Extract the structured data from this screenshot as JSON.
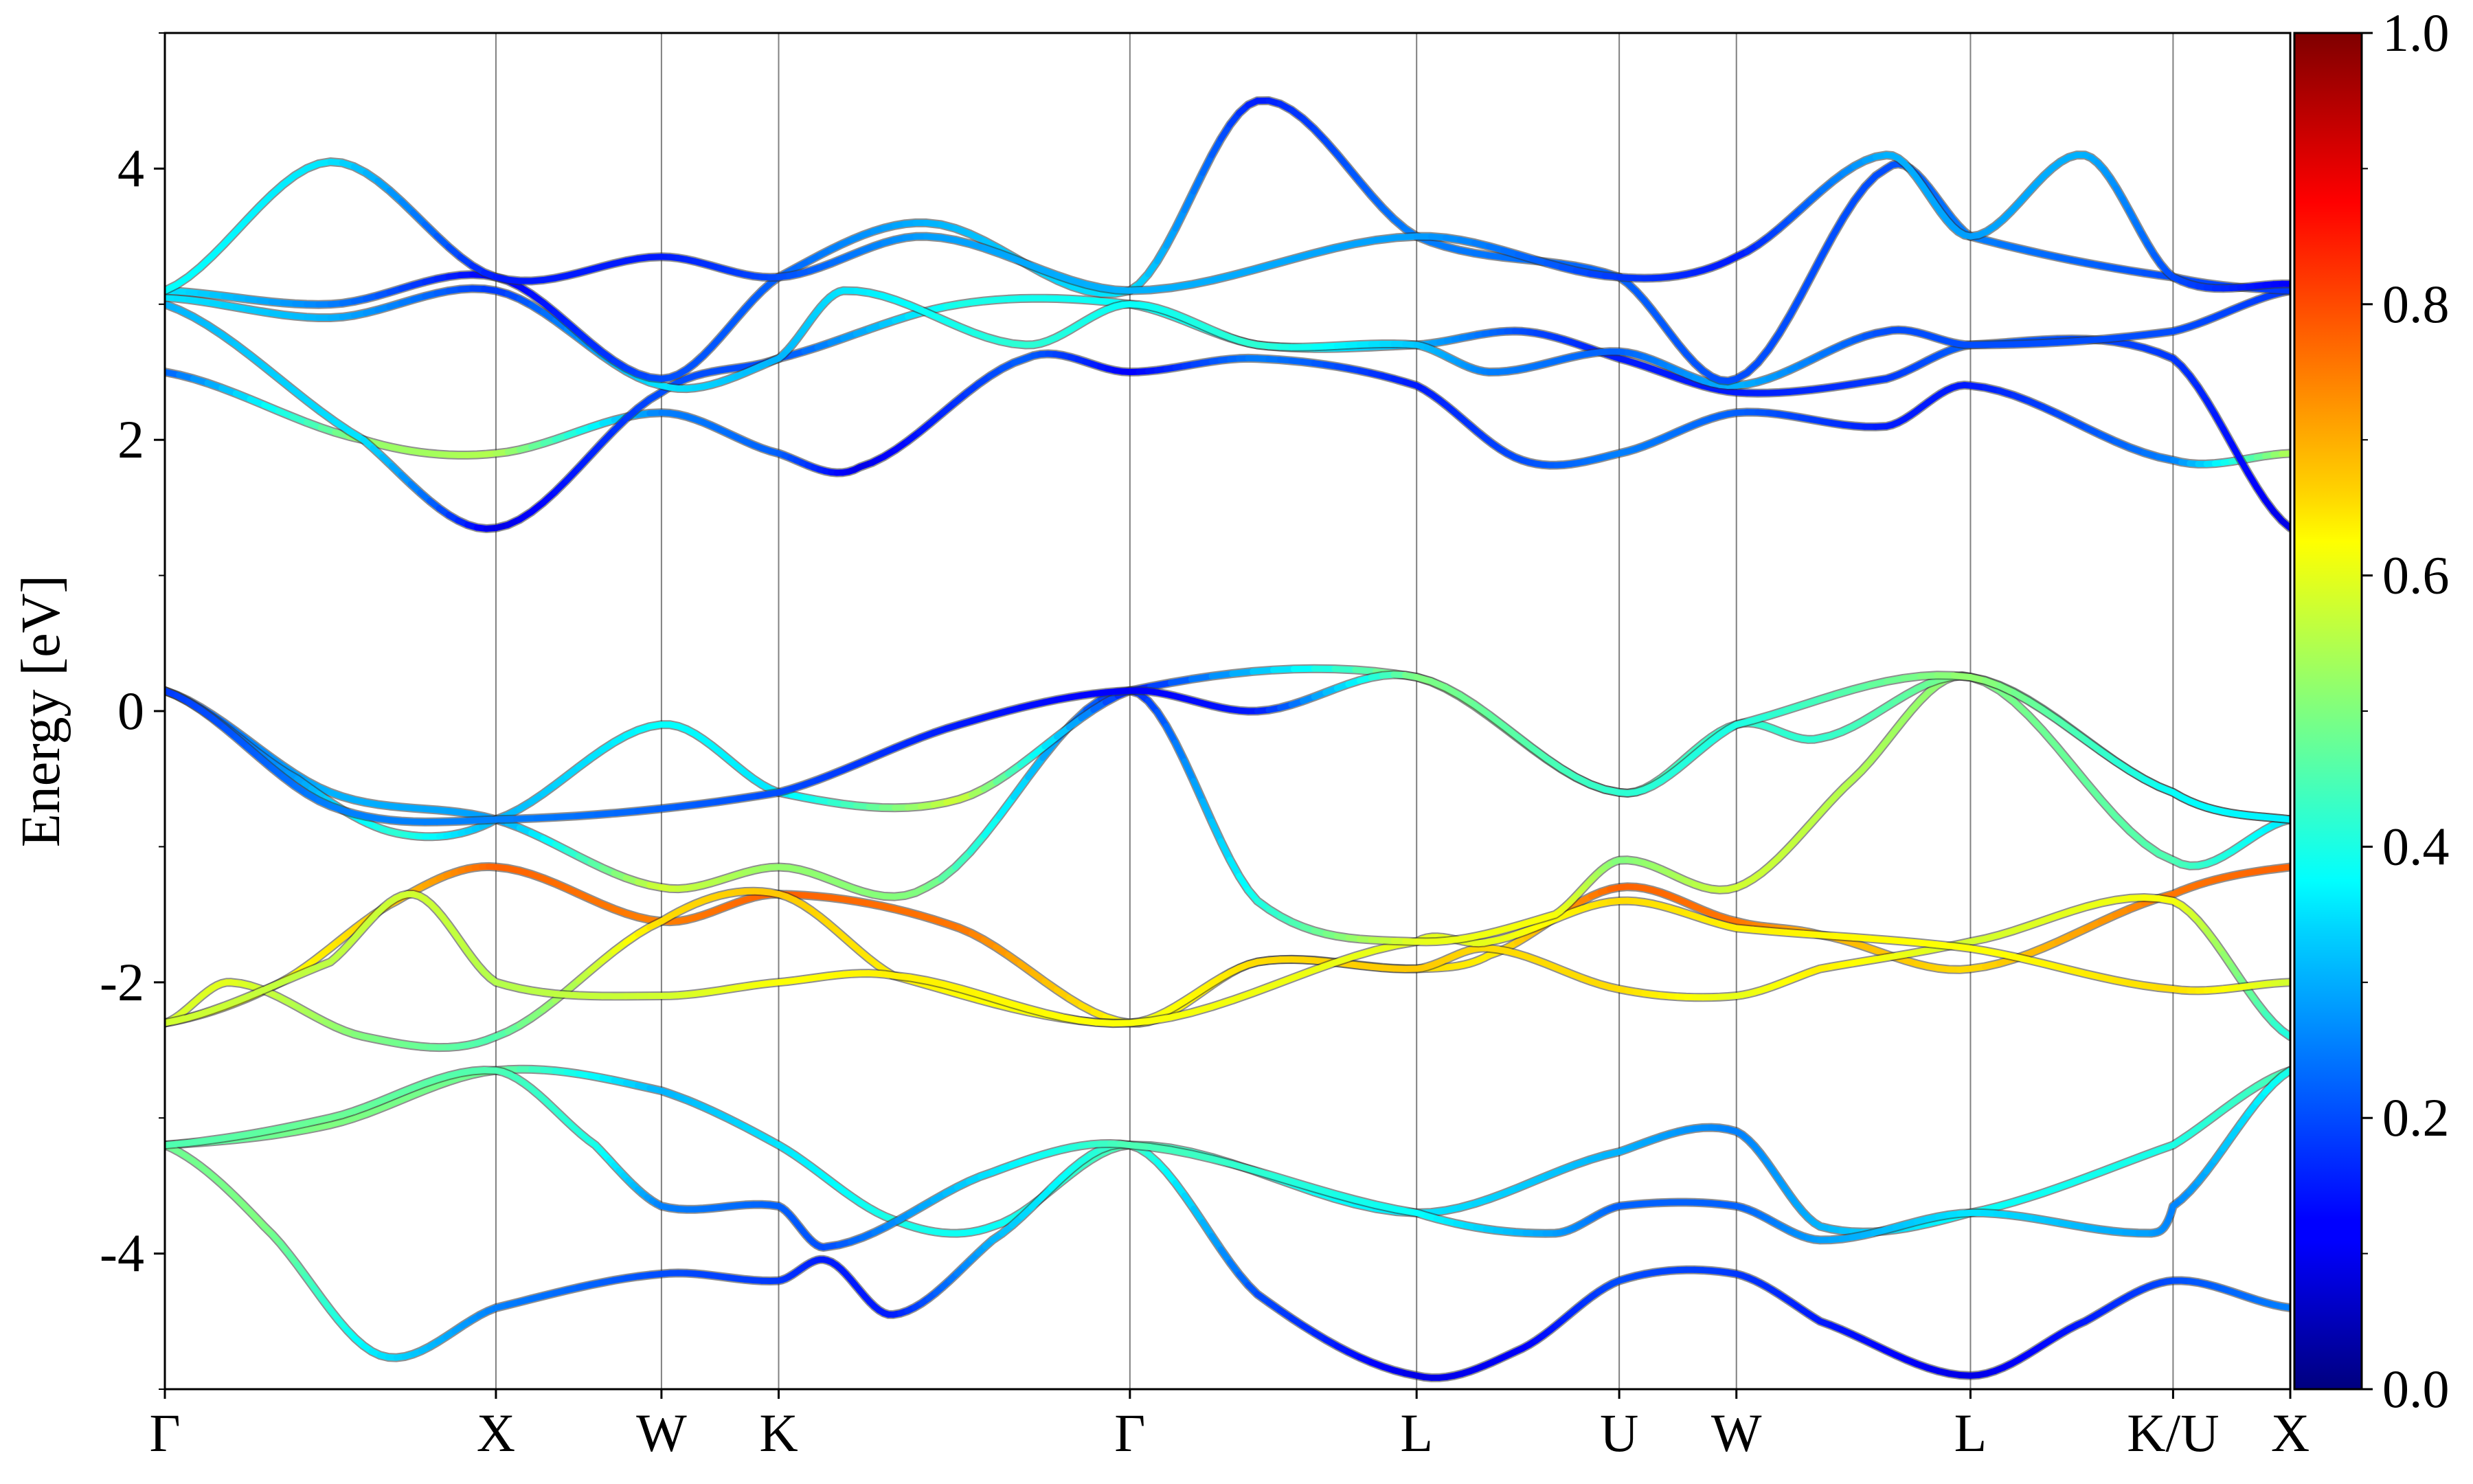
{
  "chart_data": {
    "type": "line",
    "title": "",
    "ylabel": "Energy [eV]",
    "xlabel": "",
    "ylim": [
      -5,
      5
    ],
    "yticks": [
      {
        "value": 4,
        "label": "4"
      },
      {
        "value": 2,
        "label": "2"
      },
      {
        "value": 0,
        "label": "0"
      },
      {
        "value": -2,
        "label": "-2"
      },
      {
        "value": -4,
        "label": "-4"
      }
    ],
    "kpoints": [
      {
        "label": "Γ",
        "x": 0.0
      },
      {
        "label": "X",
        "x": 1.0
      },
      {
        "label": "W",
        "x": 1.5
      },
      {
        "label": "K",
        "x": 1.854
      },
      {
        "label": "Γ",
        "x": 2.915
      },
      {
        "label": "L",
        "x": 3.781
      },
      {
        "label": "U",
        "x": 4.393
      },
      {
        "label": "W",
        "x": 4.747
      },
      {
        "label": "L",
        "x": 5.454
      },
      {
        "label": "K/U",
        "x": 6.066
      },
      {
        "label": "X",
        "x": 6.42
      }
    ],
    "xlim": [
      0,
      6.42
    ],
    "colorbar": {
      "min": 0.0,
      "max": 1.0,
      "colormap": "jet",
      "ticks": [
        {
          "value": 0.0,
          "label": "0.0"
        },
        {
          "value": 0.2,
          "label": "0.2"
        },
        {
          "value": 0.4,
          "label": "0.4"
        },
        {
          "value": 0.6,
          "label": "0.6"
        },
        {
          "value": 0.8,
          "label": "0.8"
        },
        {
          "value": 1.0,
          "label": "1.0"
        }
      ]
    },
    "grid": "vertical lines at high-symmetry points",
    "bands": [
      {
        "points": [
          [
            0,
            -3.2,
            0.45
          ],
          [
            0.5,
            -3.05,
            0.5
          ],
          [
            1.0,
            -2.65,
            0.48
          ],
          [
            1.5,
            -2.8,
            0.3
          ],
          [
            1.854,
            -3.2,
            0.35
          ],
          [
            2.2,
            -3.75,
            0.4
          ],
          [
            2.5,
            -3.8,
            0.38
          ],
          [
            2.915,
            -3.2,
            0.45
          ],
          [
            3.781,
            -3.7,
            0.35
          ],
          [
            4.393,
            -3.25,
            0.3
          ],
          [
            4.747,
            -3.1,
            0.25
          ],
          [
            5.0,
            -3.8,
            0.3
          ],
          [
            5.454,
            -3.7,
            0.38
          ],
          [
            6.066,
            -3.2,
            0.4
          ],
          [
            6.42,
            -2.65,
            0.45
          ]
        ]
      },
      {
        "points": [
          [
            0,
            -3.2,
            0.48
          ],
          [
            0.3,
            -3.8,
            0.5
          ],
          [
            0.65,
            -4.75,
            0.35
          ],
          [
            1.0,
            -4.4,
            0.25
          ],
          [
            1.5,
            -4.15,
            0.2
          ],
          [
            1.854,
            -4.2,
            0.18
          ],
          [
            2.0,
            -4.05,
            0.15
          ],
          [
            2.2,
            -4.45,
            0.15
          ],
          [
            2.5,
            -3.9,
            0.3
          ],
          [
            2.915,
            -3.2,
            0.45
          ],
          [
            3.3,
            -4.3,
            0.2
          ],
          [
            3.781,
            -4.9,
            0.1
          ],
          [
            4.1,
            -4.7,
            0.12
          ],
          [
            4.393,
            -4.2,
            0.2
          ],
          [
            4.747,
            -4.15,
            0.18
          ],
          [
            5.0,
            -4.5,
            0.15
          ],
          [
            5.454,
            -4.9,
            0.1
          ],
          [
            5.8,
            -4.5,
            0.15
          ],
          [
            6.066,
            -4.2,
            0.2
          ],
          [
            6.42,
            -4.4,
            0.25
          ]
        ]
      },
      {
        "points": [
          [
            0,
            -3.2,
            0.45
          ],
          [
            0.5,
            -3.0,
            0.48
          ],
          [
            1.0,
            -2.65,
            0.45
          ],
          [
            1.3,
            -3.2,
            0.4
          ],
          [
            1.5,
            -3.65,
            0.25
          ],
          [
            1.854,
            -3.65,
            0.22
          ],
          [
            2.0,
            -3.95,
            0.2
          ],
          [
            2.5,
            -3.4,
            0.35
          ],
          [
            2.915,
            -3.2,
            0.45
          ],
          [
            3.781,
            -3.7,
            0.38
          ],
          [
            4.2,
            -3.85,
            0.28
          ],
          [
            4.393,
            -3.65,
            0.22
          ],
          [
            4.747,
            -3.65,
            0.22
          ],
          [
            5.0,
            -3.9,
            0.28
          ],
          [
            5.454,
            -3.7,
            0.35
          ],
          [
            6.0,
            -3.85,
            0.28
          ],
          [
            6.066,
            -3.65,
            0.25
          ],
          [
            6.42,
            -2.65,
            0.4
          ]
        ]
      },
      {
        "points": [
          [
            0,
            -2.3,
            0.6
          ],
          [
            0.35,
            -2.0,
            0.62
          ],
          [
            0.7,
            -1.4,
            0.68
          ],
          [
            1.0,
            -1.15,
            0.78
          ],
          [
            1.5,
            -1.55,
            0.75
          ],
          [
            1.854,
            -1.35,
            0.78
          ],
          [
            2.4,
            -1.6,
            0.76
          ],
          [
            2.915,
            -2.3,
            0.62
          ],
          [
            3.3,
            -1.85,
            0.65
          ],
          [
            3.781,
            -1.9,
            0.66
          ],
          [
            4.0,
            -1.8,
            0.64
          ],
          [
            4.393,
            -1.3,
            0.78
          ],
          [
            4.747,
            -1.55,
            0.76
          ],
          [
            5.0,
            -1.65,
            0.7
          ],
          [
            5.454,
            -1.9,
            0.66
          ],
          [
            6.066,
            -1.35,
            0.76
          ],
          [
            6.42,
            -1.15,
            0.78
          ]
        ]
      },
      {
        "points": [
          [
            0,
            -2.3,
            0.58
          ],
          [
            0.2,
            -2.0,
            0.6
          ],
          [
            0.6,
            -2.4,
            0.5
          ],
          [
            1.0,
            -2.4,
            0.45
          ],
          [
            1.5,
            -1.55,
            0.66
          ],
          [
            1.854,
            -1.35,
            0.68
          ],
          [
            2.2,
            -1.95,
            0.64
          ],
          [
            2.915,
            -2.3,
            0.6
          ],
          [
            3.3,
            -1.85,
            0.66
          ],
          [
            3.781,
            -1.9,
            0.68
          ],
          [
            4.0,
            -1.75,
            0.66
          ],
          [
            4.393,
            -2.05,
            0.66
          ],
          [
            4.747,
            -2.1,
            0.6
          ],
          [
            5.0,
            -1.9,
            0.64
          ],
          [
            5.454,
            -1.7,
            0.58
          ],
          [
            6.066,
            -1.4,
            0.62
          ],
          [
            6.42,
            -2.4,
            0.4
          ]
        ]
      },
      {
        "points": [
          [
            0,
            -2.3,
            0.58
          ],
          [
            0.5,
            -1.85,
            0.56
          ],
          [
            0.75,
            -1.35,
            0.58
          ],
          [
            1.0,
            -2.0,
            0.55
          ],
          [
            1.5,
            -2.1,
            0.58
          ],
          [
            1.854,
            -2.0,
            0.62
          ],
          [
            2.2,
            -1.95,
            0.64
          ],
          [
            2.915,
            -2.3,
            0.62
          ],
          [
            3.781,
            -1.7,
            0.6
          ],
          [
            4.0,
            -1.7,
            0.6
          ],
          [
            4.393,
            -1.4,
            0.66
          ],
          [
            4.747,
            -1.6,
            0.64
          ],
          [
            5.454,
            -1.75,
            0.62
          ],
          [
            6.066,
            -2.05,
            0.66
          ],
          [
            6.42,
            -2.0,
            0.58
          ]
        ]
      },
      {
        "points": [
          [
            0,
            0.15,
            0.2
          ],
          [
            0.5,
            -0.6,
            0.3
          ],
          [
            1.0,
            -0.8,
            0.28
          ],
          [
            1.5,
            -1.3,
            0.58
          ],
          [
            1.854,
            -1.15,
            0.52
          ],
          [
            2.3,
            -1.3,
            0.5
          ],
          [
            2.915,
            0.15,
            0.15
          ],
          [
            3.3,
            -1.4,
            0.4
          ],
          [
            3.781,
            -1.7,
            0.6
          ],
          [
            4.2,
            -1.5,
            0.62
          ],
          [
            4.393,
            -1.1,
            0.5
          ],
          [
            4.747,
            -1.3,
            0.58
          ],
          [
            5.1,
            -0.5,
            0.55
          ],
          [
            5.454,
            0.25,
            0.5
          ],
          [
            6.066,
            -1.1,
            0.45
          ],
          [
            6.42,
            -0.8,
            0.35
          ]
        ]
      },
      {
        "points": [
          [
            0,
            0.15,
            0.18
          ],
          [
            0.4,
            -0.5,
            0.28
          ],
          [
            0.7,
            -0.9,
            0.42
          ],
          [
            1.0,
            -0.8,
            0.3
          ],
          [
            1.5,
            -0.1,
            0.38
          ],
          [
            1.854,
            -0.6,
            0.35
          ],
          [
            2.4,
            -0.65,
            0.58
          ],
          [
            2.915,
            0.15,
            0.15
          ],
          [
            3.781,
            0.25,
            0.52
          ],
          [
            4.393,
            -0.6,
            0.45
          ],
          [
            4.747,
            -0.1,
            0.42
          ],
          [
            5.0,
            -0.2,
            0.42
          ],
          [
            5.454,
            0.25,
            0.5
          ],
          [
            6.066,
            -0.6,
            0.4
          ],
          [
            6.42,
            -0.8,
            0.38
          ]
        ]
      },
      {
        "points": [
          [
            0,
            0.15,
            0.18
          ],
          [
            0.5,
            -0.7,
            0.25
          ],
          [
            1.0,
            -0.8,
            0.25
          ],
          [
            1.854,
            -0.6,
            0.2
          ],
          [
            2.4,
            -0.1,
            0.15
          ],
          [
            2.915,
            0.15,
            0.12
          ],
          [
            3.3,
            0.0,
            0.15
          ],
          [
            3.781,
            0.25,
            0.5
          ],
          [
            4.393,
            -0.6,
            0.42
          ],
          [
            4.747,
            -0.1,
            0.4
          ],
          [
            5.454,
            0.25,
            0.52
          ],
          [
            6.066,
            -0.6,
            0.38
          ],
          [
            6.42,
            -0.8,
            0.36
          ]
        ]
      },
      {
        "points": [
          [
            0,
            2.5,
            0.22
          ],
          [
            0.6,
            2.0,
            0.52
          ],
          [
            1.0,
            1.9,
            0.55
          ],
          [
            1.5,
            2.2,
            0.25
          ],
          [
            1.854,
            1.9,
            0.22
          ],
          [
            2.1,
            1.8,
            0.1
          ],
          [
            2.6,
            2.6,
            0.22
          ],
          [
            2.915,
            2.5,
            0.12
          ],
          [
            3.3,
            2.6,
            0.25
          ],
          [
            3.781,
            2.4,
            0.15
          ],
          [
            4.1,
            1.85,
            0.2
          ],
          [
            4.393,
            1.9,
            0.25
          ],
          [
            4.747,
            2.2,
            0.22
          ],
          [
            5.2,
            2.1,
            0.15
          ],
          [
            5.454,
            2.4,
            0.15
          ],
          [
            6.066,
            1.85,
            0.25
          ],
          [
            6.42,
            1.9,
            0.55
          ]
        ]
      },
      {
        "points": [
          [
            0,
            3.0,
            0.3
          ],
          [
            0.6,
            2.0,
            0.35
          ],
          [
            1.0,
            1.35,
            0.1
          ],
          [
            1.5,
            2.35,
            0.2
          ],
          [
            1.854,
            2.6,
            0.2
          ],
          [
            2.4,
            3.0,
            0.4
          ],
          [
            2.915,
            3.0,
            0.38
          ],
          [
            3.3,
            2.7,
            0.4
          ],
          [
            3.781,
            2.7,
            0.3
          ],
          [
            4.1,
            2.8,
            0.2
          ],
          [
            4.393,
            2.6,
            0.15
          ],
          [
            4.747,
            2.35,
            0.15
          ],
          [
            5.2,
            2.45,
            0.18
          ],
          [
            5.454,
            2.7,
            0.22
          ],
          [
            6.066,
            2.6,
            0.18
          ],
          [
            6.42,
            1.35,
            0.1
          ]
        ]
      },
      {
        "points": [
          [
            0,
            3.05,
            0.35
          ],
          [
            0.5,
            2.9,
            0.3
          ],
          [
            1.0,
            3.1,
            0.18
          ],
          [
            1.5,
            2.4,
            0.35
          ],
          [
            1.854,
            2.6,
            0.3
          ],
          [
            2.05,
            3.1,
            0.35
          ],
          [
            2.6,
            2.7,
            0.42
          ],
          [
            2.915,
            3.0,
            0.38
          ],
          [
            3.3,
            2.7,
            0.42
          ],
          [
            3.781,
            2.7,
            0.32
          ],
          [
            4.0,
            2.5,
            0.25
          ],
          [
            4.393,
            2.65,
            0.22
          ],
          [
            4.747,
            2.4,
            0.3
          ],
          [
            5.2,
            2.8,
            0.2
          ],
          [
            5.454,
            2.7,
            0.2
          ],
          [
            6.066,
            2.8,
            0.2
          ],
          [
            6.42,
            3.1,
            0.18
          ]
        ]
      },
      {
        "points": [
          [
            0,
            3.1,
            0.35
          ],
          [
            0.5,
            3.0,
            0.25
          ],
          [
            1.0,
            3.2,
            0.12
          ],
          [
            1.5,
            2.45,
            0.2
          ],
          [
            1.854,
            3.2,
            0.22
          ],
          [
            2.3,
            3.6,
            0.3
          ],
          [
            2.915,
            3.1,
            0.35
          ],
          [
            3.3,
            4.5,
            0.15
          ],
          [
            3.781,
            3.5,
            0.25
          ],
          [
            4.393,
            3.2,
            0.22
          ],
          [
            4.747,
            2.45,
            0.2
          ],
          [
            5.2,
            4.0,
            0.2
          ],
          [
            5.454,
            3.5,
            0.25
          ],
          [
            6.066,
            3.2,
            0.2
          ],
          [
            6.42,
            3.1,
            0.18
          ]
        ]
      },
      {
        "points": [
          [
            0,
            3.1,
            0.38
          ],
          [
            0.5,
            4.05,
            0.35
          ],
          [
            1.0,
            3.2,
            0.15
          ],
          [
            1.5,
            3.35,
            0.15
          ],
          [
            1.854,
            3.2,
            0.2
          ],
          [
            2.3,
            3.5,
            0.28
          ],
          [
            2.915,
            3.1,
            0.3
          ],
          [
            3.781,
            3.5,
            0.28
          ],
          [
            4.393,
            3.2,
            0.18
          ],
          [
            4.747,
            3.35,
            0.15
          ],
          [
            5.2,
            4.1,
            0.3
          ],
          [
            5.454,
            3.5,
            0.28
          ],
          [
            5.8,
            4.1,
            0.3
          ],
          [
            6.066,
            3.2,
            0.2
          ],
          [
            6.42,
            3.15,
            0.12
          ]
        ]
      }
    ]
  }
}
